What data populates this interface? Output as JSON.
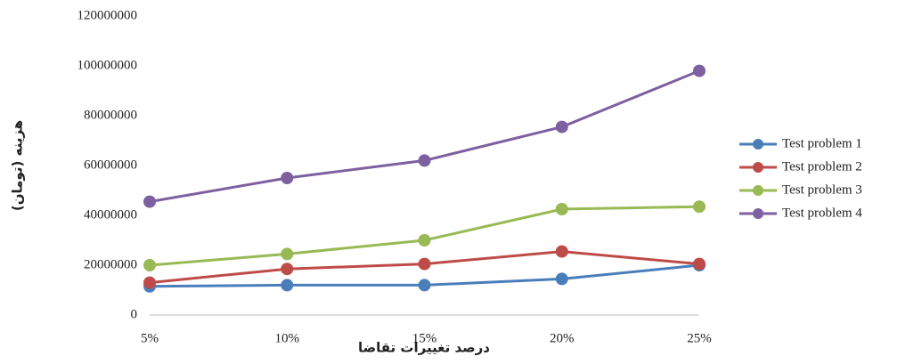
{
  "chart_data": {
    "type": "line",
    "x_label": "درصد تغییرات تقاضا",
    "y_label": "هزینه (تومان)",
    "categories": [
      "5%",
      "10%",
      "15%",
      "20%",
      "25%"
    ],
    "series": [
      {
        "name": "Test problem 1",
        "color": "#4a7ebb",
        "values": [
          11500000,
          12000000,
          12000000,
          14500000,
          20000000
        ]
      },
      {
        "name": "Test problem 2",
        "color": "#be4b48",
        "values": [
          13000000,
          18500000,
          20500000,
          25500000,
          20500000
        ]
      },
      {
        "name": "Test problem 3",
        "color": "#98b954",
        "values": [
          20000000,
          24500000,
          30000000,
          42500000,
          43500000
        ]
      },
      {
        "name": "Test problem 4",
        "color": "#7d60a0",
        "values": [
          45500000,
          55000000,
          62000000,
          75500000,
          98000000
        ]
      }
    ],
    "ylim": [
      0,
      120000000
    ],
    "yticks": [
      0,
      20000000,
      40000000,
      60000000,
      80000000,
      100000000,
      120000000
    ],
    "grid": false,
    "legend": "right"
  }
}
